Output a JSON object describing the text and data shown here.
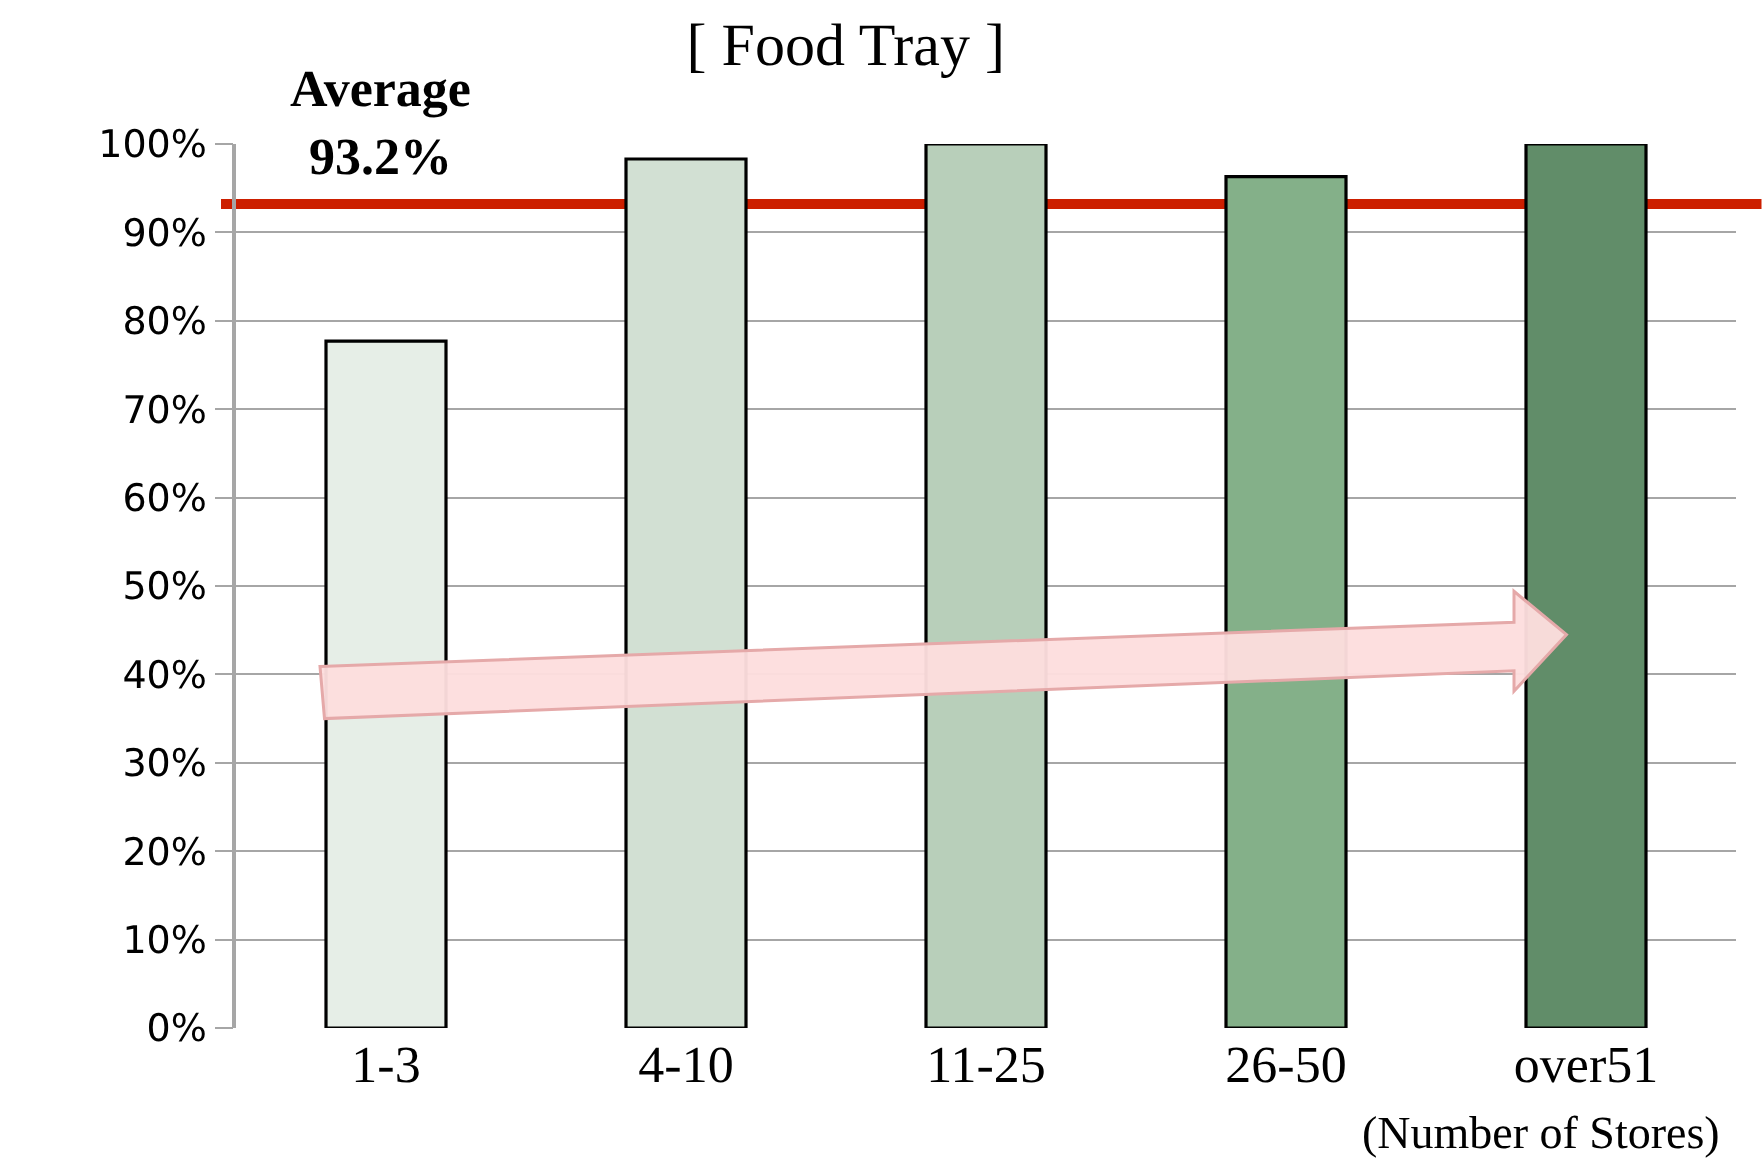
{
  "chart_data": {
    "type": "bar",
    "title": "[ Food Tray ]",
    "xlabel": "(Number of Stores)",
    "categories": [
      "1-3",
      "4-10",
      "11-25",
      "26-50",
      "over51"
    ],
    "values": [
      77.7,
      98.3,
      100,
      96.3,
      100
    ],
    "colors": [
      "#e6eee7",
      "#d2e0d3",
      "#b8cfba",
      "#84b089",
      "#618d69"
    ],
    "ylim": [
      0,
      100
    ],
    "yticks": [
      {
        "value": 0,
        "label": "0%"
      },
      {
        "value": 10,
        "label": "10%"
      },
      {
        "value": 20,
        "label": "20%"
      },
      {
        "value": 30,
        "label": "30%"
      },
      {
        "value": 40,
        "label": "40%"
      },
      {
        "value": 50,
        "label": "50%"
      },
      {
        "value": 60,
        "label": "60%"
      },
      {
        "value": 70,
        "label": "70%"
      },
      {
        "value": 80,
        "label": "80%"
      },
      {
        "value": 90,
        "label": "90%"
      },
      {
        "value": 100,
        "label": "100%"
      }
    ],
    "grid": "y",
    "ref_lines": [
      {
        "axis": "y",
        "value": 93.2,
        "label": "Average\n93.2%",
        "color": "#cc1f00"
      }
    ]
  }
}
